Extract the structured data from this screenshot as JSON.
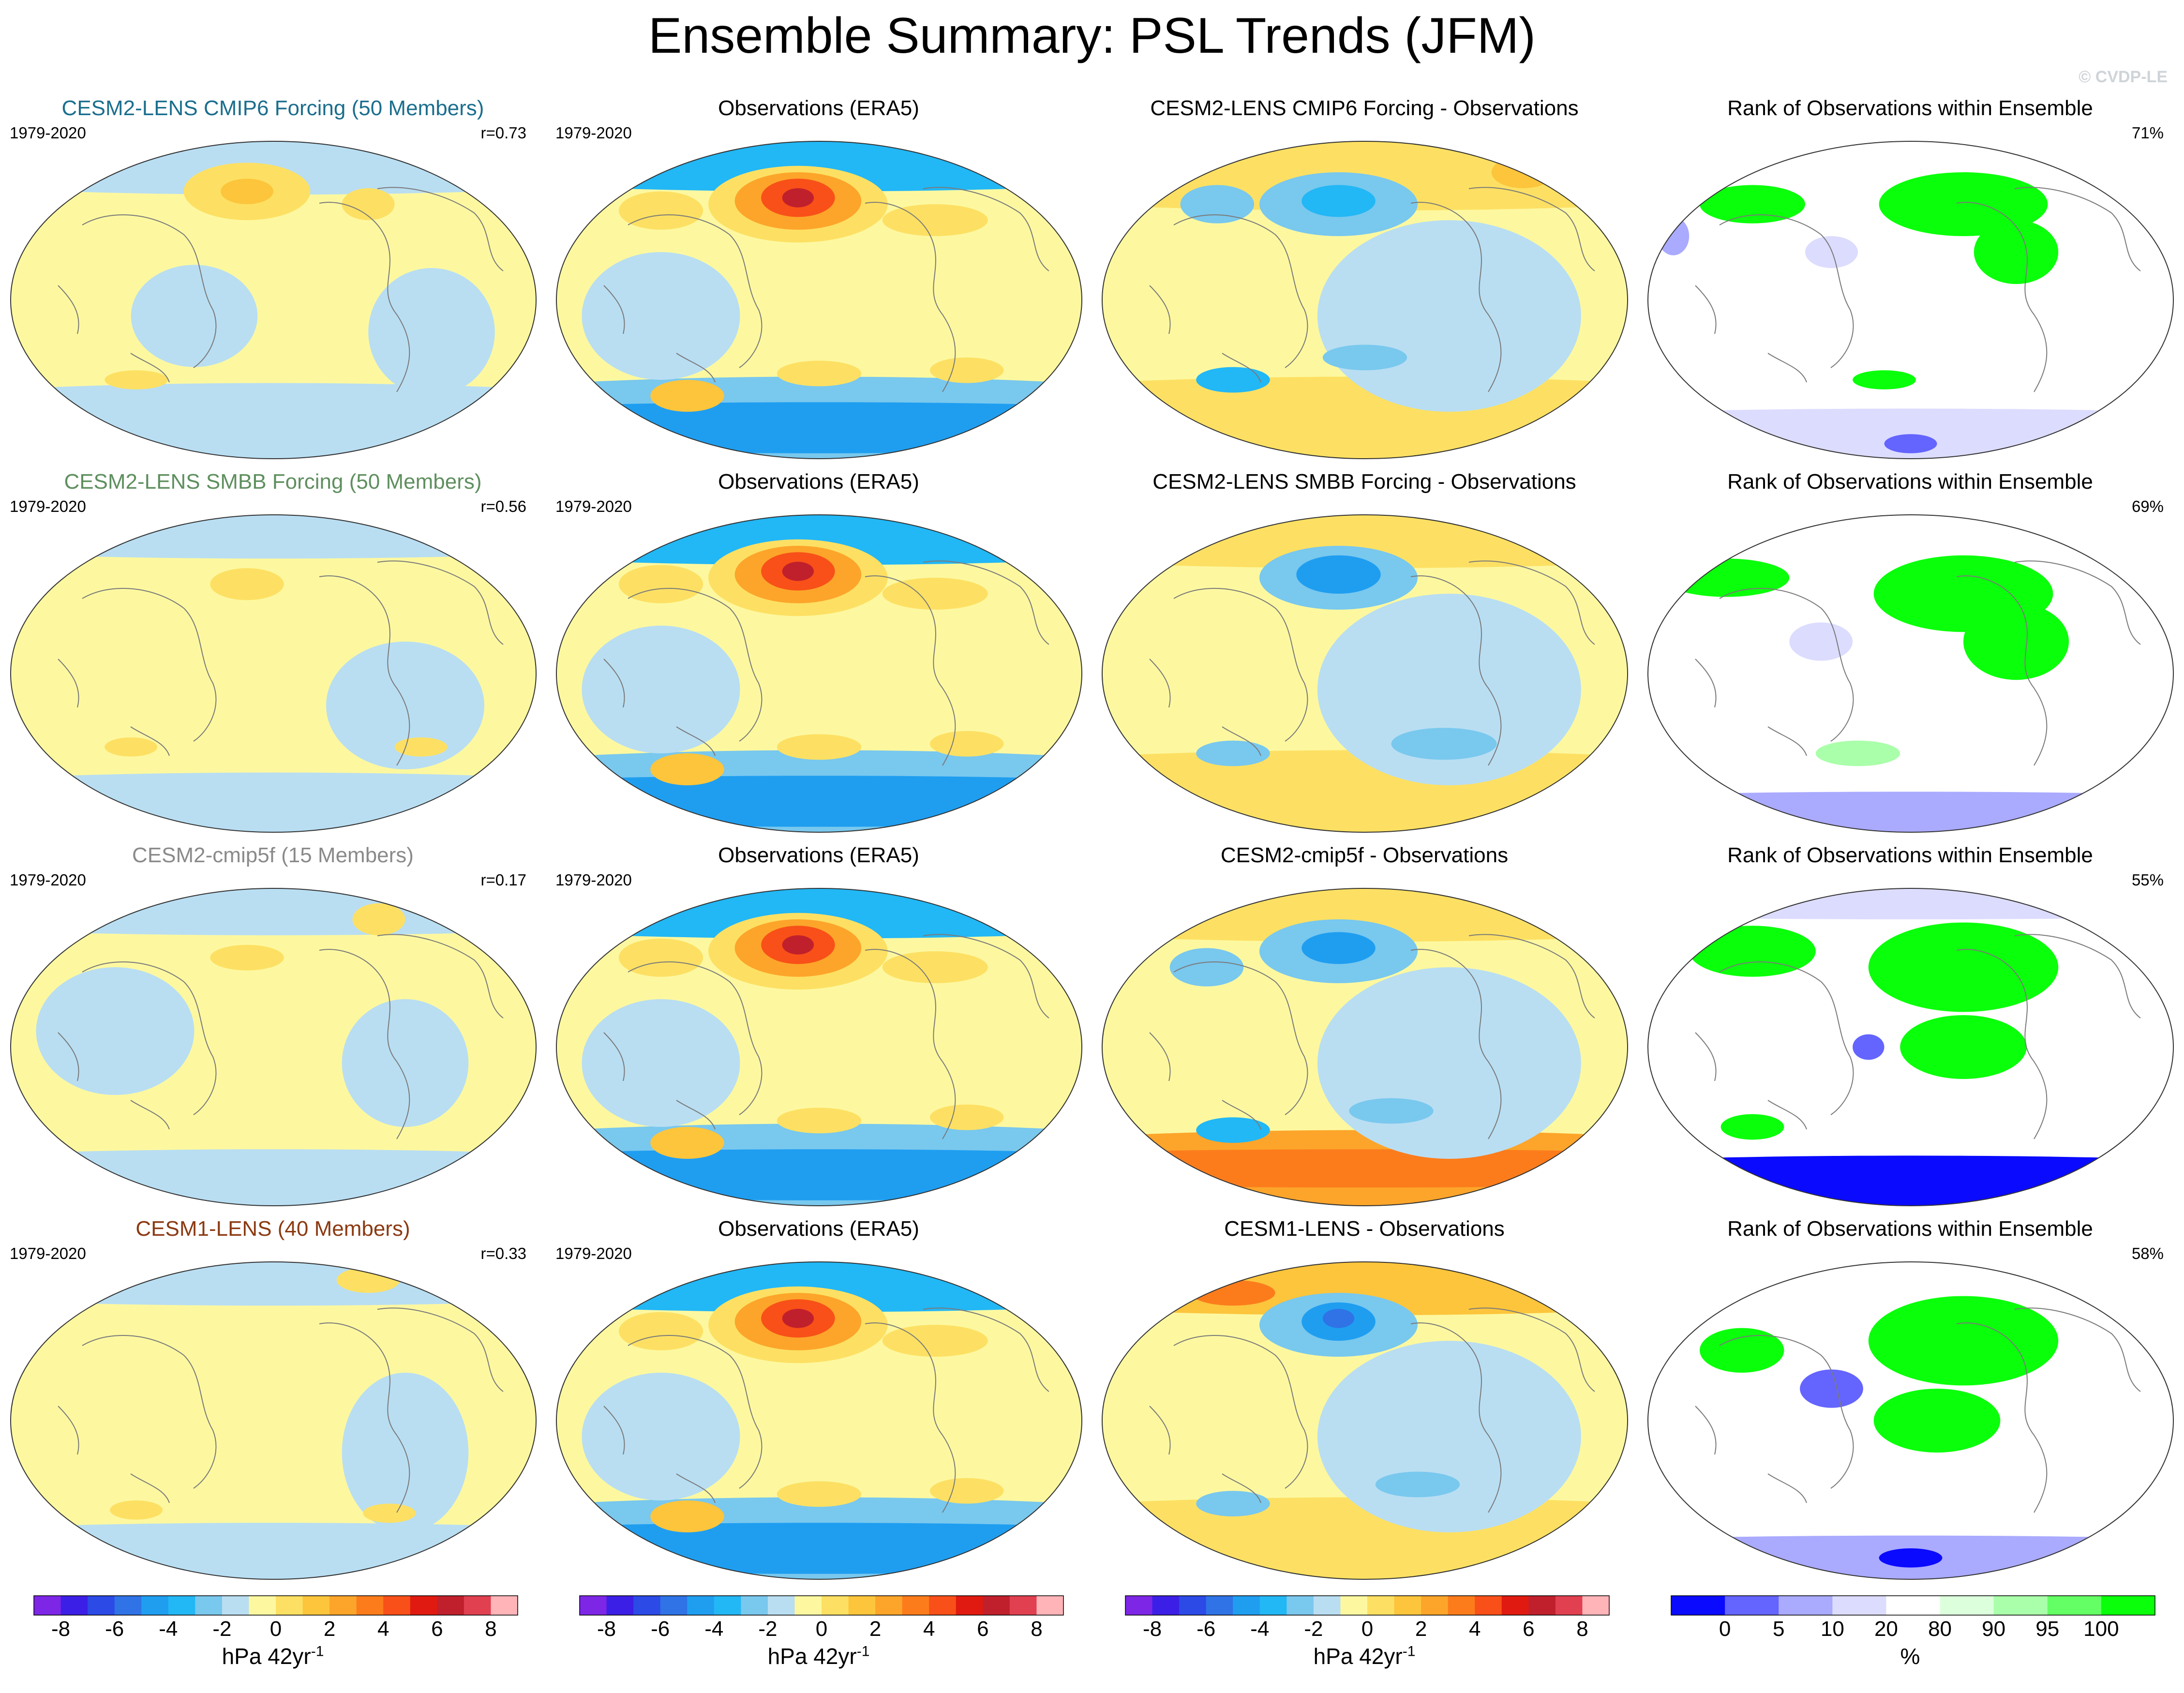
{
  "title": "Ensemble Summary: PSL Trends (JFM)",
  "credit": "© CVDP-LE",
  "colors": {
    "trend_scale": [
      "#7d26e6",
      "#3c1fe6",
      "#2b4ae6",
      "#2f73e6",
      "#1f9ef0",
      "#22b7f5",
      "#79c8ee",
      "#b9def2",
      "#fdf8a0",
      "#fde063",
      "#fcc53c",
      "#fca52a",
      "#fc7c1c",
      "#f85018",
      "#e01a10",
      "#c0202c",
      "#e04050",
      "#ffb4b8"
    ],
    "rank_scale": [
      "#0a0aff",
      "#6464ff",
      "#aaaaff",
      "#dcdcff",
      "#ffffff",
      "#dcffdc",
      "#aaffaa",
      "#64ff64",
      "#0aff0a"
    ]
  },
  "chart_data": [
    {
      "type": "heatmap",
      "row": 1,
      "col": 1,
      "title": "CESM2-LENS CMIP6 Forcing (50 Members)",
      "title_color": "#1b6e8e",
      "period": "1979-2020",
      "stat": "r=0.73",
      "field": "ens_cmip6"
    },
    {
      "type": "heatmap",
      "row": 1,
      "col": 2,
      "title": "Observations (ERA5)",
      "title_color": "#000000",
      "period": "1979-2020",
      "stat": "",
      "field": "obs"
    },
    {
      "type": "heatmap",
      "row": 1,
      "col": 3,
      "title": "CESM2-LENS CMIP6 Forcing - Observations",
      "title_color": "#000000",
      "period": "",
      "stat": "",
      "field": "diff1"
    },
    {
      "type": "heatmap",
      "row": 1,
      "col": 4,
      "title": "Rank of Observations within Ensemble",
      "title_color": "#000000",
      "period": "",
      "stat": "71%",
      "field": "rank1"
    },
    {
      "type": "heatmap",
      "row": 2,
      "col": 1,
      "title": "CESM2-LENS SMBB Forcing (50 Members)",
      "title_color": "#5e8f5e",
      "period": "1979-2020",
      "stat": "r=0.56",
      "field": "ens_smbb"
    },
    {
      "type": "heatmap",
      "row": 2,
      "col": 2,
      "title": "Observations (ERA5)",
      "title_color": "#000000",
      "period": "1979-2020",
      "stat": "",
      "field": "obs"
    },
    {
      "type": "heatmap",
      "row": 2,
      "col": 3,
      "title": "CESM2-LENS SMBB Forcing - Observations",
      "title_color": "#000000",
      "period": "",
      "stat": "",
      "field": "diff2"
    },
    {
      "type": "heatmap",
      "row": 2,
      "col": 4,
      "title": "Rank of Observations within Ensemble",
      "title_color": "#000000",
      "period": "",
      "stat": "69%",
      "field": "rank2"
    },
    {
      "type": "heatmap",
      "row": 3,
      "col": 1,
      "title": "CESM2-cmip5f (15 Members)",
      "title_color": "#8a8a8a",
      "period": "1979-2020",
      "stat": "r=0.17",
      "field": "ens_cmip5f"
    },
    {
      "type": "heatmap",
      "row": 3,
      "col": 2,
      "title": "Observations (ERA5)",
      "title_color": "#000000",
      "period": "1979-2020",
      "stat": "",
      "field": "obs"
    },
    {
      "type": "heatmap",
      "row": 3,
      "col": 3,
      "title": "CESM2-cmip5f - Observations",
      "title_color": "#000000",
      "period": "",
      "stat": "",
      "field": "diff3"
    },
    {
      "type": "heatmap",
      "row": 3,
      "col": 4,
      "title": "Rank of Observations within Ensemble",
      "title_color": "#000000",
      "period": "",
      "stat": "55%",
      "field": "rank3"
    },
    {
      "type": "heatmap",
      "row": 4,
      "col": 1,
      "title": "CESM1-LENS (40 Members)",
      "title_color": "#8b3a12",
      "period": "1979-2020",
      "stat": "r=0.33",
      "field": "ens_cesm1"
    },
    {
      "type": "heatmap",
      "row": 4,
      "col": 2,
      "title": "Observations (ERA5)",
      "title_color": "#000000",
      "period": "1979-2020",
      "stat": "",
      "field": "obs"
    },
    {
      "type": "heatmap",
      "row": 4,
      "col": 3,
      "title": "CESM1-LENS - Observations",
      "title_color": "#000000",
      "period": "",
      "stat": "",
      "field": "diff4"
    },
    {
      "type": "heatmap",
      "row": 4,
      "col": 4,
      "title": "Rank of Observations within Ensemble",
      "title_color": "#000000",
      "period": "",
      "stat": "58%",
      "field": "rank4"
    }
  ],
  "colorbars": [
    {
      "label": "hPa 42yr",
      "label_sup": "-1",
      "kind": "trend",
      "tick_labels": [
        "-8",
        "-6",
        "-4",
        "-2",
        "0",
        "2",
        "4",
        "6",
        "8"
      ],
      "range": [
        -9,
        9
      ]
    },
    {
      "label": "hPa 42yr",
      "label_sup": "-1",
      "kind": "trend",
      "tick_labels": [
        "-8",
        "-6",
        "-4",
        "-2",
        "0",
        "2",
        "4",
        "6",
        "8"
      ],
      "range": [
        -9,
        9
      ]
    },
    {
      "label": "hPa 42yr",
      "label_sup": "-1",
      "kind": "trend",
      "tick_labels": [
        "-8",
        "-6",
        "-4",
        "-2",
        "0",
        "2",
        "4",
        "6",
        "8"
      ],
      "range": [
        -9,
        9
      ]
    },
    {
      "label": "%",
      "label_sup": "",
      "kind": "rank",
      "tick_labels": [
        "0",
        "5",
        "10",
        "20",
        "80",
        "90",
        "95",
        "100"
      ],
      "tick_boundaries": [
        1,
        2,
        3,
        4,
        5,
        6,
        7,
        8
      ]
    }
  ]
}
